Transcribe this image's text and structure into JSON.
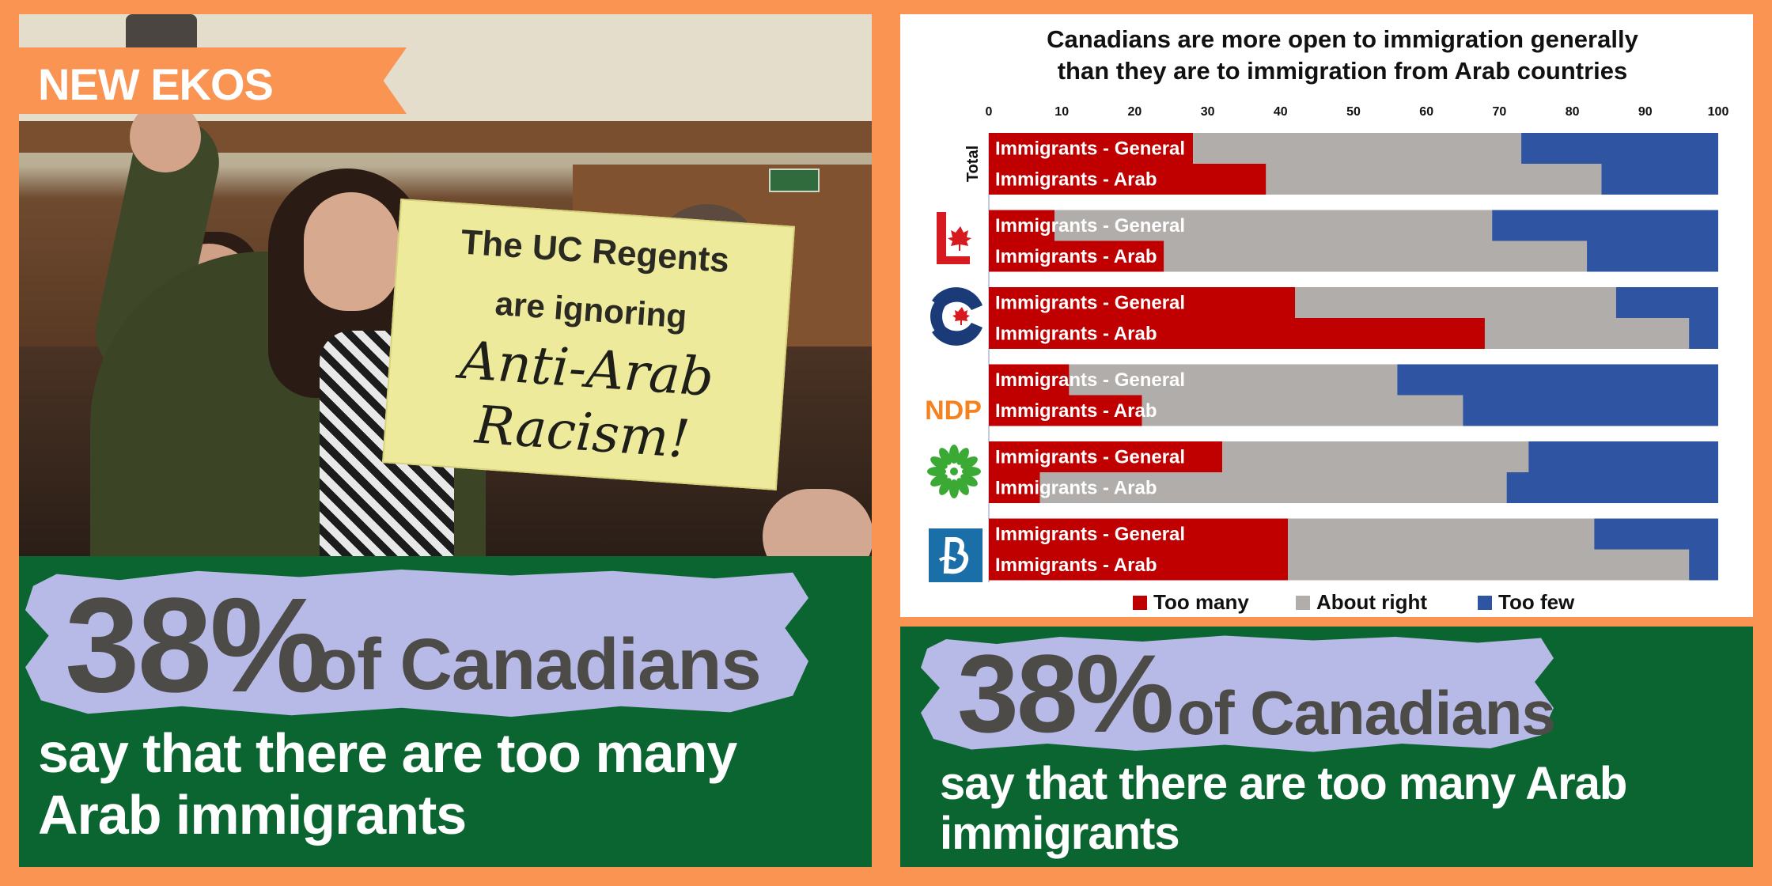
{
  "left": {
    "badge": "NEW EKOS POLL:",
    "sign": {
      "line1": "The UC Regents",
      "line2": "are ignoring",
      "line3": "Anti-Arab",
      "line4": "Racism!"
    },
    "stat_value": "38%",
    "stat_suffix": "of Canadians",
    "caption_line1": "say that there are too many",
    "caption_line2": "Arab immigrants"
  },
  "right": {
    "stat_value": "38%",
    "stat_suffix": "of Canadians",
    "caption_line1": "say that there are too many Arab",
    "caption_line2": "immigrants"
  },
  "colors": {
    "too_many": "#c00000",
    "about_right": "#b0adab",
    "too_few": "#2f55a2",
    "green_panel": "#0b6530",
    "orange_frame": "#f99452",
    "brush": "#b7b9e6"
  },
  "chart_data": {
    "type": "bar",
    "orientation": "horizontal-stacked-100",
    "title": "Canadians are more open to immigration generally than they are to immigration from Arab countries",
    "title_lines": [
      "Canadians are more open to immigration generally",
      "than they are to immigration from Arab countries"
    ],
    "xlim": [
      0,
      100
    ],
    "xticks": [
      0,
      10,
      20,
      30,
      40,
      50,
      60,
      70,
      80,
      90,
      100
    ],
    "legend_position": "bottom",
    "legend": [
      "Too many",
      "About right",
      "Too few"
    ],
    "groups": [
      {
        "group": "Total",
        "label_type": "text",
        "icon": "",
        "bars": [
          {
            "label": "Immigrants - General",
            "too_many": 28,
            "about_right": 45,
            "too_few": 27
          },
          {
            "label": "Immigrants - Arab",
            "too_many": 38,
            "about_right": 46,
            "too_few": 16
          }
        ]
      },
      {
        "group": "Liberal",
        "label_type": "icon",
        "icon": "liberal-logo-icon",
        "bars": [
          {
            "label": "Immigrants - General",
            "too_many": 9,
            "about_right": 60,
            "too_few": 31
          },
          {
            "label": "Immigrants - Arab",
            "too_many": 24,
            "about_right": 58,
            "too_few": 18
          }
        ]
      },
      {
        "group": "Conservative",
        "label_type": "icon",
        "icon": "conservative-logo-icon",
        "bars": [
          {
            "label": "Immigrants - General",
            "too_many": 42,
            "about_right": 44,
            "too_few": 14
          },
          {
            "label": "Immigrants - Arab",
            "too_many": 68,
            "about_right": 28,
            "too_few": 4
          }
        ]
      },
      {
        "group": "NDP",
        "label_type": "logo-text",
        "icon": "ndp-logo-icon",
        "logo_text": "NDP",
        "bars": [
          {
            "label": "Immigrants - General",
            "too_many": 11,
            "about_right": 45,
            "too_few": 44
          },
          {
            "label": "Immigrants - Arab",
            "too_many": 21,
            "about_right": 44,
            "too_few": 35
          }
        ]
      },
      {
        "group": "Green",
        "label_type": "icon",
        "icon": "green-party-logo-icon",
        "bars": [
          {
            "label": "Immigrants - General",
            "too_many": 32,
            "about_right": 42,
            "too_few": 26
          },
          {
            "label": "Immigrants - Arab",
            "too_many": 7,
            "about_right": 64,
            "too_few": 29
          }
        ]
      },
      {
        "group": "Bloc Quebecois",
        "label_type": "icon",
        "icon": "bloc-quebecois-logo-icon",
        "bars": [
          {
            "label": "Immigrants - General",
            "too_many": 41,
            "about_right": 42,
            "too_few": 17
          },
          {
            "label": "Immigrants - Arab",
            "too_many": 41,
            "about_right": 55,
            "too_few": 4
          }
        ]
      }
    ]
  }
}
